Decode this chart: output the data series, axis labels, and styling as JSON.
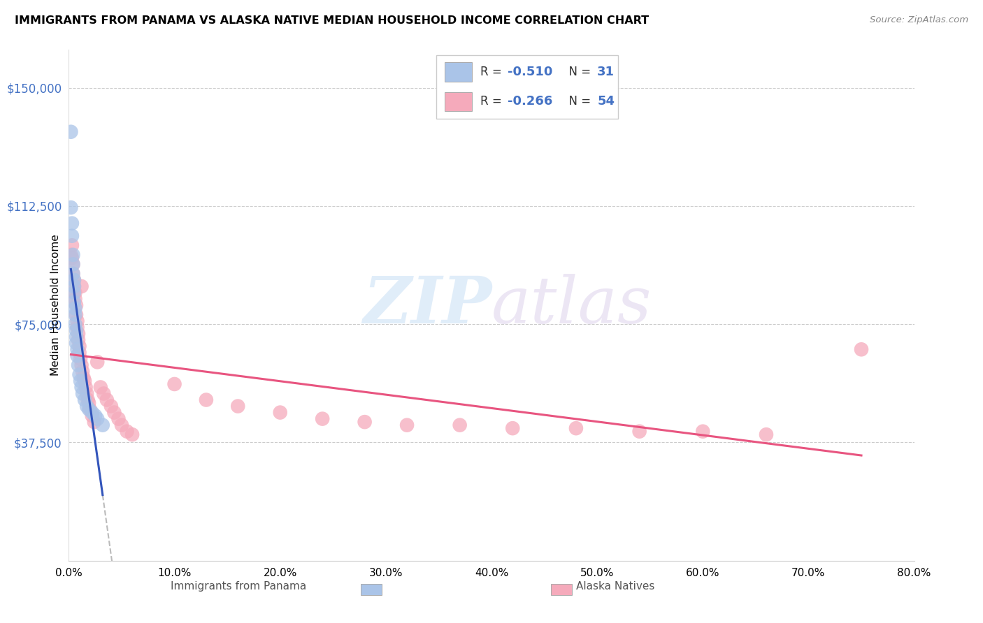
{
  "title": "IMMIGRANTS FROM PANAMA VS ALASKA NATIVE MEDIAN HOUSEHOLD INCOME CORRELATION CHART",
  "source": "Source: ZipAtlas.com",
  "ylabel": "Median Household Income",
  "ytick_labels": [
    "$37,500",
    "$75,000",
    "$112,500",
    "$150,000"
  ],
  "ytick_values": [
    37500,
    75000,
    112500,
    150000
  ],
  "ylim": [
    0,
    162000
  ],
  "xlim": [
    0.0,
    0.8
  ],
  "xtick_values": [
    0.0,
    0.1,
    0.2,
    0.3,
    0.4,
    0.5,
    0.6,
    0.7,
    0.8
  ],
  "xtick_labels": [
    "0.0%",
    "10.0%",
    "20.0%",
    "30.0%",
    "40.0%",
    "50.0%",
    "60.0%",
    "70.0%",
    "80.0%"
  ],
  "legend_blue_R": -0.51,
  "legend_blue_N": 31,
  "legend_pink_R": -0.266,
  "legend_pink_N": 54,
  "blue_color": "#aac4e8",
  "pink_color": "#f5aabb",
  "blue_line_color": "#3355bb",
  "pink_line_color": "#e85580",
  "watermark_text": "ZIPatlas",
  "background_color": "#ffffff",
  "grid_color": "#cccccc",
  "blue_scatter_x": [
    0.002,
    0.002,
    0.003,
    0.003,
    0.004,
    0.004,
    0.004,
    0.005,
    0.005,
    0.005,
    0.005,
    0.006,
    0.006,
    0.006,
    0.007,
    0.007,
    0.007,
    0.008,
    0.008,
    0.009,
    0.01,
    0.011,
    0.012,
    0.013,
    0.015,
    0.017,
    0.019,
    0.022,
    0.025,
    0.027,
    0.032
  ],
  "blue_scatter_y": [
    136000,
    112000,
    107000,
    103000,
    97000,
    94000,
    91000,
    89000,
    87000,
    85000,
    82000,
    80000,
    78000,
    75000,
    73000,
    71000,
    69000,
    67000,
    65000,
    62000,
    59000,
    57000,
    55000,
    53000,
    51000,
    49000,
    48000,
    47000,
    46000,
    45000,
    43000
  ],
  "pink_scatter_x": [
    0.002,
    0.003,
    0.003,
    0.004,
    0.004,
    0.005,
    0.005,
    0.006,
    0.006,
    0.007,
    0.007,
    0.008,
    0.008,
    0.009,
    0.009,
    0.01,
    0.01,
    0.011,
    0.012,
    0.012,
    0.013,
    0.014,
    0.015,
    0.016,
    0.017,
    0.018,
    0.019,
    0.02,
    0.022,
    0.024,
    0.027,
    0.03,
    0.033,
    0.036,
    0.04,
    0.043,
    0.047,
    0.05,
    0.055,
    0.06,
    0.1,
    0.13,
    0.16,
    0.2,
    0.24,
    0.28,
    0.32,
    0.37,
    0.42,
    0.48,
    0.54,
    0.6,
    0.66,
    0.75
  ],
  "pink_scatter_y": [
    97000,
    100000,
    96000,
    94000,
    91000,
    89000,
    87000,
    85000,
    83000,
    81000,
    78000,
    76000,
    74000,
    72000,
    70000,
    68000,
    66000,
    64000,
    87000,
    62000,
    60000,
    58000,
    57000,
    55000,
    53000,
    51000,
    50000,
    48000,
    46000,
    44000,
    63000,
    55000,
    53000,
    51000,
    49000,
    47000,
    45000,
    43000,
    41000,
    40000,
    56000,
    51000,
    49000,
    47000,
    45000,
    44000,
    43000,
    43000,
    42000,
    42000,
    41000,
    41000,
    40000,
    67000
  ]
}
